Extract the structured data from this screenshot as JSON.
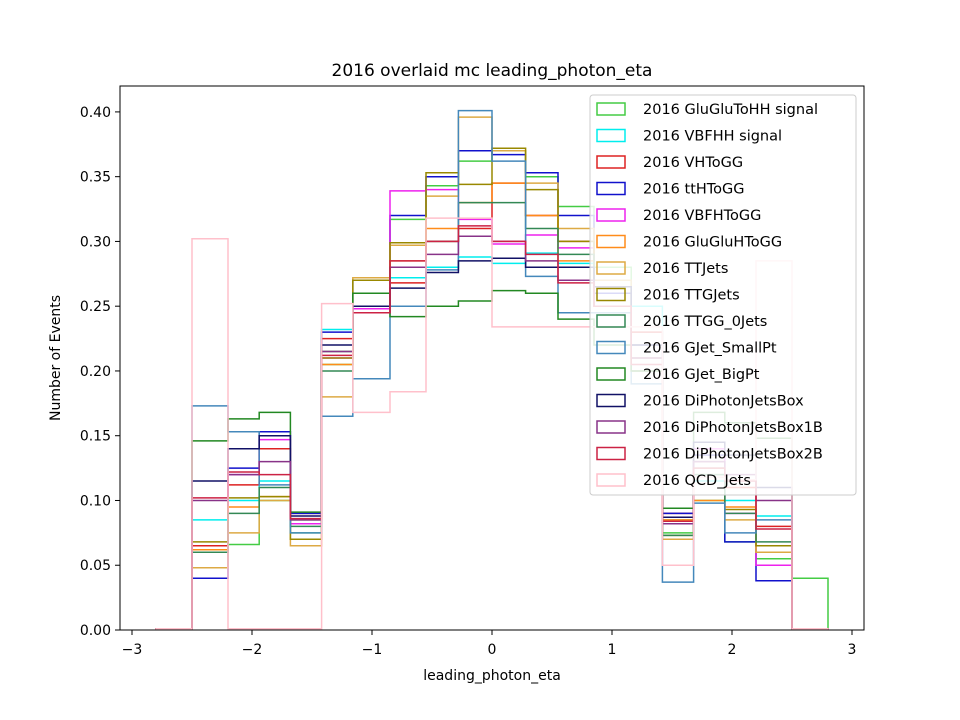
{
  "chart_data": {
    "type": "histogram-step",
    "title": "2016 overlaid mc leading_photon_eta",
    "xlabel": "leading_photon_eta",
    "ylabel": "Number of Events",
    "xlim": [
      -3.1,
      3.1
    ],
    "ylim": [
      0,
      0.42
    ],
    "xticks": [
      -3,
      -2,
      -1,
      0,
      1,
      2,
      3
    ],
    "xtick_labels": [
      "−3",
      "−2",
      "−1",
      "0",
      "1",
      "2",
      "3"
    ],
    "yticks": [
      0.0,
      0.05,
      0.1,
      0.15,
      0.2,
      0.25,
      0.3,
      0.35,
      0.4
    ],
    "ytick_labels": [
      "0.00",
      "0.05",
      "0.10",
      "0.15",
      "0.20",
      "0.25",
      "0.30",
      "0.35",
      "0.40"
    ],
    "legend_position": "top-right",
    "bin_edges": [
      -2.8,
      -2.5,
      -2.2,
      -1.94,
      -1.68,
      -1.42,
      -1.16,
      -0.85,
      -0.55,
      -0.28,
      0.0,
      0.28,
      0.55,
      0.85,
      1.16,
      1.42,
      1.68,
      1.94,
      2.2,
      2.5,
      2.8
    ],
    "series": [
      {
        "name": "2016 GluGluToHH signal",
        "color": "#44cc44",
        "values": [
          0.001,
          0.065,
          0.066,
          0.1,
          0.075,
          0.205,
          0.27,
          0.317,
          0.343,
          0.362,
          0.37,
          0.35,
          0.327,
          0.28,
          0.22,
          0.075,
          0.1,
          0.068,
          0.055,
          0.04
        ]
      },
      {
        "name": "2016 VBFHH signal",
        "color": "#00eeee",
        "values": [
          0.001,
          0.085,
          0.1,
          0.115,
          0.085,
          0.232,
          0.25,
          0.272,
          0.28,
          0.288,
          0.283,
          0.291,
          0.283,
          0.27,
          0.25,
          0.085,
          0.115,
          0.1,
          0.088,
          0.001
        ]
      },
      {
        "name": "2016 VHToGG",
        "color": "#dd2222",
        "values": [
          0.001,
          0.065,
          0.112,
          0.14,
          0.09,
          0.225,
          0.25,
          0.268,
          0.3,
          0.31,
          0.345,
          0.32,
          0.3,
          0.26,
          0.23,
          0.09,
          0.13,
          0.11,
          0.08,
          0.001
        ]
      },
      {
        "name": "2016 ttHToGG",
        "color": "#1111cc",
        "values": [
          0.001,
          0.04,
          0.125,
          0.153,
          0.09,
          0.23,
          0.27,
          0.32,
          0.35,
          0.37,
          0.367,
          0.353,
          0.32,
          0.26,
          0.22,
          0.09,
          0.135,
          0.068,
          0.038,
          0.001
        ]
      },
      {
        "name": "2016 VBFHToGG",
        "color": "#ee22ee",
        "values": [
          0.001,
          0.062,
          0.12,
          0.147,
          0.082,
          0.21,
          0.248,
          0.339,
          0.34,
          0.317,
          0.298,
          0.305,
          0.295,
          0.25,
          0.21,
          0.082,
          0.14,
          0.09,
          0.05,
          0.001
        ]
      },
      {
        "name": "2016 GluGluHToGG",
        "color": "#ff8c1a",
        "values": [
          0.001,
          0.062,
          0.095,
          0.103,
          0.085,
          0.205,
          0.245,
          0.285,
          0.31,
          0.33,
          0.345,
          0.32,
          0.285,
          0.25,
          0.2,
          0.085,
          0.1,
          0.095,
          0.06,
          0.001
        ]
      },
      {
        "name": "2016 TTJets",
        "color": "#ddaa44",
        "values": [
          0.001,
          0.048,
          0.075,
          0.1,
          0.065,
          0.18,
          0.272,
          0.297,
          0.335,
          0.396,
          0.37,
          0.345,
          0.31,
          0.27,
          0.2,
          0.07,
          0.12,
          0.085,
          0.06,
          0.001
        ]
      },
      {
        "name": "2016 TTGJets",
        "color": "#998800",
        "values": [
          0.001,
          0.068,
          0.102,
          0.103,
          0.07,
          0.21,
          0.27,
          0.299,
          0.353,
          0.344,
          0.372,
          0.34,
          0.3,
          0.265,
          0.21,
          0.073,
          0.125,
          0.093,
          0.065,
          0.001
        ]
      },
      {
        "name": "2016 TTGG_0Jets",
        "color": "#338855",
        "values": [
          0.001,
          0.06,
          0.09,
          0.11,
          0.08,
          0.2,
          0.25,
          0.28,
          0.3,
          0.33,
          0.33,
          0.31,
          0.29,
          0.25,
          0.2,
          0.073,
          0.12,
          0.09,
          0.068,
          0.001
        ]
      },
      {
        "name": "2016 GJet_SmallPt",
        "color": "#4488bb",
        "values": [
          0.001,
          0.173,
          0.153,
          0.112,
          0.075,
          0.165,
          0.194,
          0.25,
          0.278,
          0.401,
          0.362,
          0.273,
          0.245,
          0.245,
          0.19,
          0.037,
          0.098,
          0.075,
          0.085,
          0.001
        ]
      },
      {
        "name": "2016 GJet_BigPt",
        "color": "#228822",
        "values": [
          0.001,
          0.146,
          0.163,
          0.168,
          0.091,
          0.215,
          0.26,
          0.242,
          0.25,
          0.254,
          0.262,
          0.26,
          0.24,
          0.22,
          0.2,
          0.094,
          0.168,
          0.16,
          0.148,
          0.001
        ]
      },
      {
        "name": "2016 DiPhotonJetsBox",
        "color": "#111166",
        "values": [
          0.001,
          0.115,
          0.14,
          0.15,
          0.088,
          0.22,
          0.25,
          0.264,
          0.276,
          0.285,
          0.287,
          0.28,
          0.28,
          0.265,
          0.22,
          0.087,
          0.145,
          0.135,
          0.11,
          0.001
        ]
      },
      {
        "name": "2016 DiPhotonJetsBox1B",
        "color": "#883388",
        "values": [
          0.001,
          0.1,
          0.12,
          0.13,
          0.085,
          0.215,
          0.245,
          0.28,
          0.29,
          0.304,
          0.3,
          0.285,
          0.27,
          0.25,
          0.21,
          0.082,
          0.13,
          0.12,
          0.1,
          0.001
        ]
      },
      {
        "name": "2016 DiPhotonJetsBox2B",
        "color": "#cc2244",
        "values": [
          0.001,
          0.102,
          0.122,
          0.12,
          0.086,
          0.212,
          0.245,
          0.285,
          0.3,
          0.312,
          0.3,
          0.29,
          0.268,
          0.25,
          0.205,
          0.084,
          0.125,
          0.115,
          0.078,
          0.001
        ]
      },
      {
        "name": "2016 QCD_Jets",
        "color": "#ffc0cb",
        "values": [
          0.001,
          0.302,
          0.001,
          0.001,
          0.001,
          0.252,
          0.168,
          0.184,
          0.318,
          0.318,
          0.234,
          0.234,
          0.234,
          0.234,
          0.234,
          0.05,
          0.118,
          0.116,
          0.285,
          0.001
        ]
      }
    ]
  }
}
